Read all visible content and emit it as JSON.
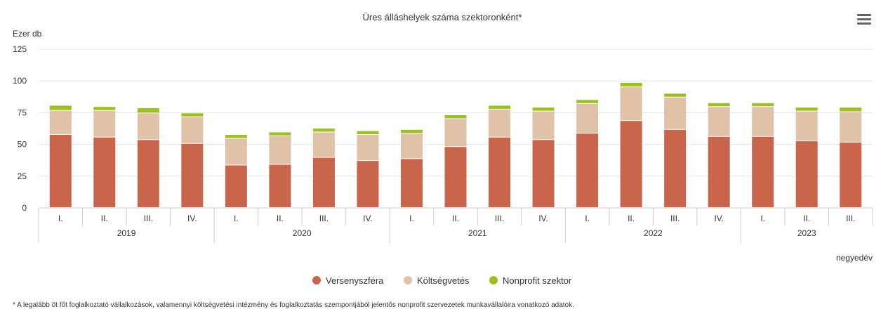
{
  "menu_icon": "hamburger-menu-icon",
  "footnote": "* A legalább öt főt foglalkoztató vállalkozások, valamennyi költségvetési intézmény és foglalkoztatás szempontjából jelentős nonprofit szervezetek munkavállalóira vonatkozó adatok.",
  "chart_data": {
    "type": "bar",
    "stacked": true,
    "title": "Üres álláshelyek száma szektoronként*",
    "ylabel": "Ezer db",
    "xlabel": "negyedév",
    "ylim": [
      0,
      125
    ],
    "yticks": [
      0,
      25,
      50,
      75,
      100,
      125
    ],
    "grid": true,
    "legend_position": "bottom",
    "years": [
      {
        "label": "2019",
        "quarters": [
          "I.",
          "II.",
          "III.",
          "IV."
        ]
      },
      {
        "label": "2020",
        "quarters": [
          "I.",
          "II.",
          "III.",
          "IV."
        ]
      },
      {
        "label": "2021",
        "quarters": [
          "I.",
          "II.",
          "III.",
          "IV."
        ]
      },
      {
        "label": "2022",
        "quarters": [
          "I.",
          "II.",
          "III.",
          "IV."
        ]
      },
      {
        "label": "2023",
        "quarters": [
          "I.",
          "II.",
          "III."
        ]
      }
    ],
    "series": [
      {
        "name": "Versenyszféra",
        "color": "#c9654b",
        "values": [
          57.5,
          55.5,
          53.5,
          50.5,
          33.5,
          34,
          39.5,
          37,
          38.5,
          48,
          55.5,
          53.5,
          58.5,
          68.5,
          61.5,
          56,
          56,
          52.5,
          51.5
        ]
      },
      {
        "name": "Költségvetés",
        "color": "#dfc2a8",
        "values": [
          19,
          21,
          21,
          21,
          21,
          22.5,
          20,
          20.5,
          20,
          22,
          22,
          22.5,
          23.5,
          26.5,
          25.5,
          23.5,
          23.5,
          23.5,
          24
        ]
      },
      {
        "name": "Nonprofit szektor",
        "color": "#9bc21c",
        "values": [
          4,
          3,
          4,
          3,
          3,
          3,
          3,
          3,
          3,
          3,
          3,
          3,
          3,
          3.5,
          3,
          3,
          3,
          3,
          3.5
        ]
      }
    ]
  }
}
